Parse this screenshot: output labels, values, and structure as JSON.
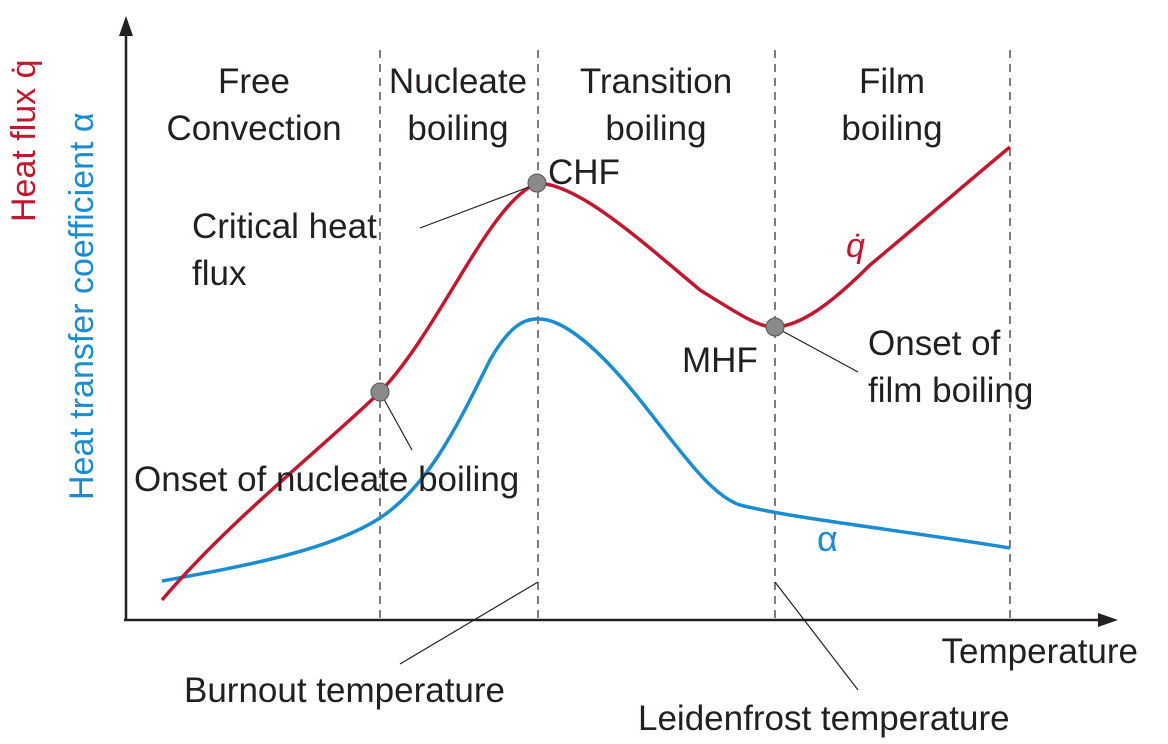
{
  "colors": {
    "heat_flux": "#c0182f",
    "htc": "#1a8ccf",
    "text": "#231f20",
    "marker": "#8a8a8a"
  },
  "axes": {
    "x_label": "Temperature",
    "y_label_part1": "Heat transfer coefficient α",
    "y_label_part2": "Heat flux q̇"
  },
  "regions": [
    {
      "line1": "Free",
      "line2": "Convection"
    },
    {
      "line1": "Nucleate",
      "line2": "boiling"
    },
    {
      "line1": "Transition",
      "line2": "boiling"
    },
    {
      "line1": "Film",
      "line2": "boiling"
    }
  ],
  "annotations": {
    "chf": "CHF",
    "critical_line1": "Critical heat",
    "critical_line2": "flux",
    "mhf": "MHF",
    "onset_film_line1": "Onset of",
    "onset_film_line2": "film boiling",
    "onset_nucleate": "Onset of nucleate boiling",
    "burnout": "Burnout temperature",
    "leidenfrost": "Leidenfrost temperature"
  },
  "curves": {
    "heat_flux_label": "q̇",
    "htc_label": "α"
  }
}
